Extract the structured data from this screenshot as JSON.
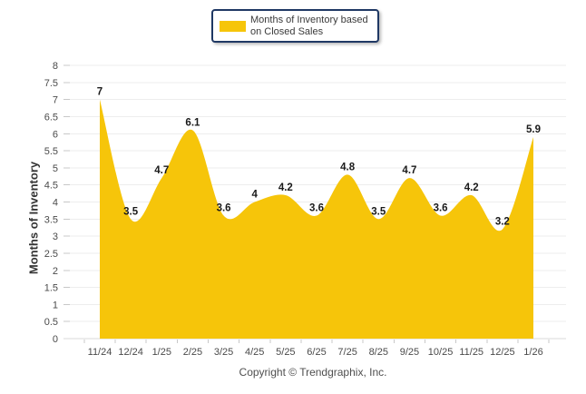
{
  "legend": {
    "label": "Months of Inventory based on Closed Sales"
  },
  "chart_data": {
    "type": "area",
    "title": "",
    "categories": [
      "11/24",
      "12/24",
      "1/25",
      "2/25",
      "3/25",
      "4/25",
      "5/25",
      "6/25",
      "7/25",
      "8/25",
      "9/25",
      "10/25",
      "11/25",
      "12/25",
      "1/26"
    ],
    "values": [
      7,
      3.5,
      4.7,
      6.1,
      3.6,
      4,
      4.2,
      3.6,
      4.8,
      3.5,
      4.7,
      3.6,
      4.2,
      3.2,
      5.9
    ],
    "series_name": "Months of Inventory based on Closed Sales",
    "xlabel": "",
    "ylabel": "Months of Inventory",
    "ylim": [
      0,
      8
    ],
    "yticks": [
      "0",
      "0.5",
      "1",
      "1.5",
      "2",
      "2.5",
      "3",
      "3.5",
      "4",
      "4.5",
      "5",
      "5.5",
      "6",
      "6.5",
      "7",
      "7.5",
      "8"
    ],
    "grid": true,
    "smooth": true,
    "data_labels_shown": true,
    "legend_position": "top"
  },
  "colors": {
    "area_fill": "#F6C50A",
    "legend_border": "#1F3864",
    "gridline": "#EDEDED",
    "axis_line": "#D8D8D8",
    "tick": "#C8C8C8",
    "tick_label": "#4A4A4A",
    "data_label": "#1A1A1A"
  },
  "footer": {
    "copyright": "Copyright © Trendgraphix, Inc."
  }
}
